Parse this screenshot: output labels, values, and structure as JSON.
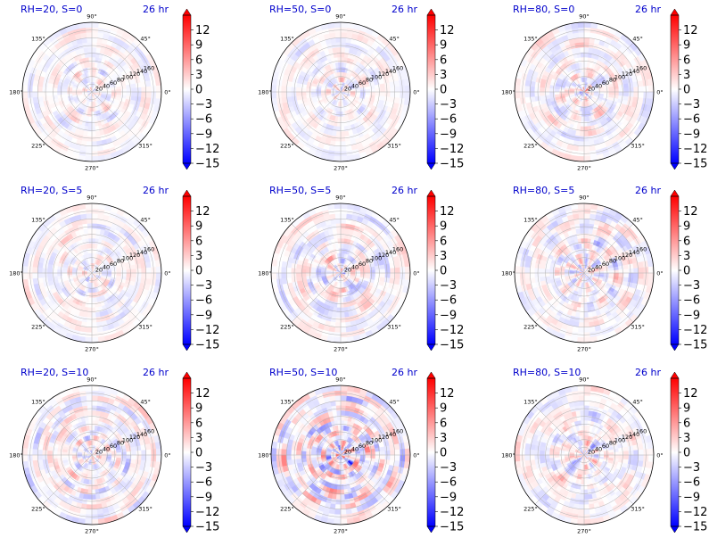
{
  "chart_data": {
    "type": "heatmap",
    "projection": "polar",
    "layout": {
      "rows": 3,
      "cols": 3
    },
    "colormap": "bwr",
    "colorbar": {
      "vmin": -15,
      "vmax": 15,
      "extend": "both",
      "ticks": [
        "12",
        "9",
        "6",
        "3",
        "0",
        "−3",
        "−6",
        "−9",
        "−12",
        "−15"
      ]
    },
    "angle_ticks": [
      "0°",
      "45°",
      "90°",
      "135°",
      "180°",
      "225°",
      "270°",
      "315°"
    ],
    "radial_ticks": [
      "20",
      "40",
      "60",
      "80",
      "100",
      "120",
      "140",
      "160"
    ],
    "rmax": 180,
    "grid": true,
    "panels": [
      {
        "title": "RH=20, S=0",
        "time": "26 hr",
        "rh": 20,
        "s": 0,
        "amplitude": 0.22,
        "seed": 11
      },
      {
        "title": "RH=50, S=0",
        "time": "26 hr",
        "rh": 50,
        "s": 0,
        "amplitude": 0.28,
        "seed": 23
      },
      {
        "title": "RH=80, S=0",
        "time": "26 hr",
        "rh": 80,
        "s": 0,
        "amplitude": 0.45,
        "seed": 37
      },
      {
        "title": "RH=20, S=5",
        "time": "26 hr",
        "rh": 20,
        "s": 5,
        "amplitude": 0.22,
        "seed": 41
      },
      {
        "title": "RH=50, S=5",
        "time": "26 hr",
        "rh": 50,
        "s": 5,
        "amplitude": 0.4,
        "seed": 53
      },
      {
        "title": "RH=80, S=5",
        "time": "26 hr",
        "rh": 80,
        "s": 5,
        "amplitude": 0.5,
        "seed": 67
      },
      {
        "title": "RH=20, S=10",
        "time": "26 hr",
        "rh": 20,
        "s": 10,
        "amplitude": 0.3,
        "seed": 71
      },
      {
        "title": "RH=50, S=10",
        "time": "26 hr",
        "rh": 50,
        "s": 10,
        "amplitude": 0.65,
        "seed": 83
      },
      {
        "title": "RH=80, S=10",
        "time": "26 hr",
        "rh": 80,
        "s": 10,
        "amplitude": 0.6,
        "seed": 97
      }
    ]
  }
}
